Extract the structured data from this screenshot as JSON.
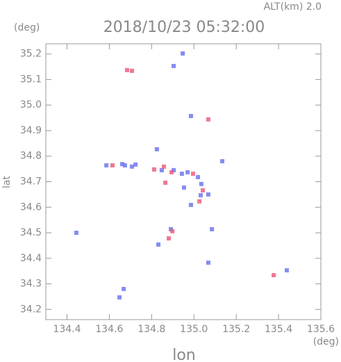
{
  "chart_data": {
    "type": "scatter",
    "title": "2018/10/23 05:32:00",
    "subtitle": "ALT(km) 2.0",
    "x_label": "lon",
    "y_label": "lat",
    "x_unit": "(deg)",
    "y_unit": "(deg)",
    "xlim": [
      134.3,
      135.6
    ],
    "ylim": [
      34.16,
      35.24
    ],
    "xticks": [
      134.4,
      134.6,
      134.8,
      {
        "value": 135.0,
        "label": "135.0"
      },
      135.2,
      135.4,
      135.6
    ],
    "yticks": [
      34.2,
      34.3,
      34.4,
      34.5,
      34.6,
      34.7,
      34.8,
      34.9,
      {
        "value": 35.0,
        "label": "35.0"
      },
      35.1,
      35.2
    ],
    "series": [
      {
        "color": "#6670ee",
        "x": [
          134.674,
          134.661,
          134.724,
          134.586,
          134.444,
          134.648,
          134.668,
          135.439,
          134.947,
          134.904,
          134.825,
          134.848,
          134.904,
          134.943,
          134.97,
          134.953,
          135.019,
          135.032,
          134.986,
          135.068,
          134.891,
          134.832,
          135.085,
          135.068,
          135.134,
          134.986,
          135.035,
          134.707
        ],
        "values": [
          34.764,
          34.769,
          34.767,
          34.764,
          34.5,
          34.247,
          34.28,
          34.353,
          35.202,
          35.153,
          34.827,
          34.745,
          34.745,
          34.731,
          34.737,
          34.677,
          34.718,
          34.647,
          34.609,
          34.65,
          34.514,
          34.454,
          34.514,
          34.383,
          34.78,
          34.957,
          34.691,
          34.759
        ]
      },
      {
        "color": "#ee5577",
        "x": [
          134.684,
          134.707,
          134.615,
          134.812,
          134.858,
          134.894,
          135.042,
          135.026,
          134.881,
          134.898,
          135.068,
          135.377,
          134.865,
          134.996
        ],
        "values": [
          35.137,
          35.134,
          34.764,
          34.748,
          34.759,
          34.737,
          34.666,
          34.623,
          34.478,
          34.506,
          34.944,
          34.334,
          34.696,
          34.731
        ]
      }
    ]
  }
}
